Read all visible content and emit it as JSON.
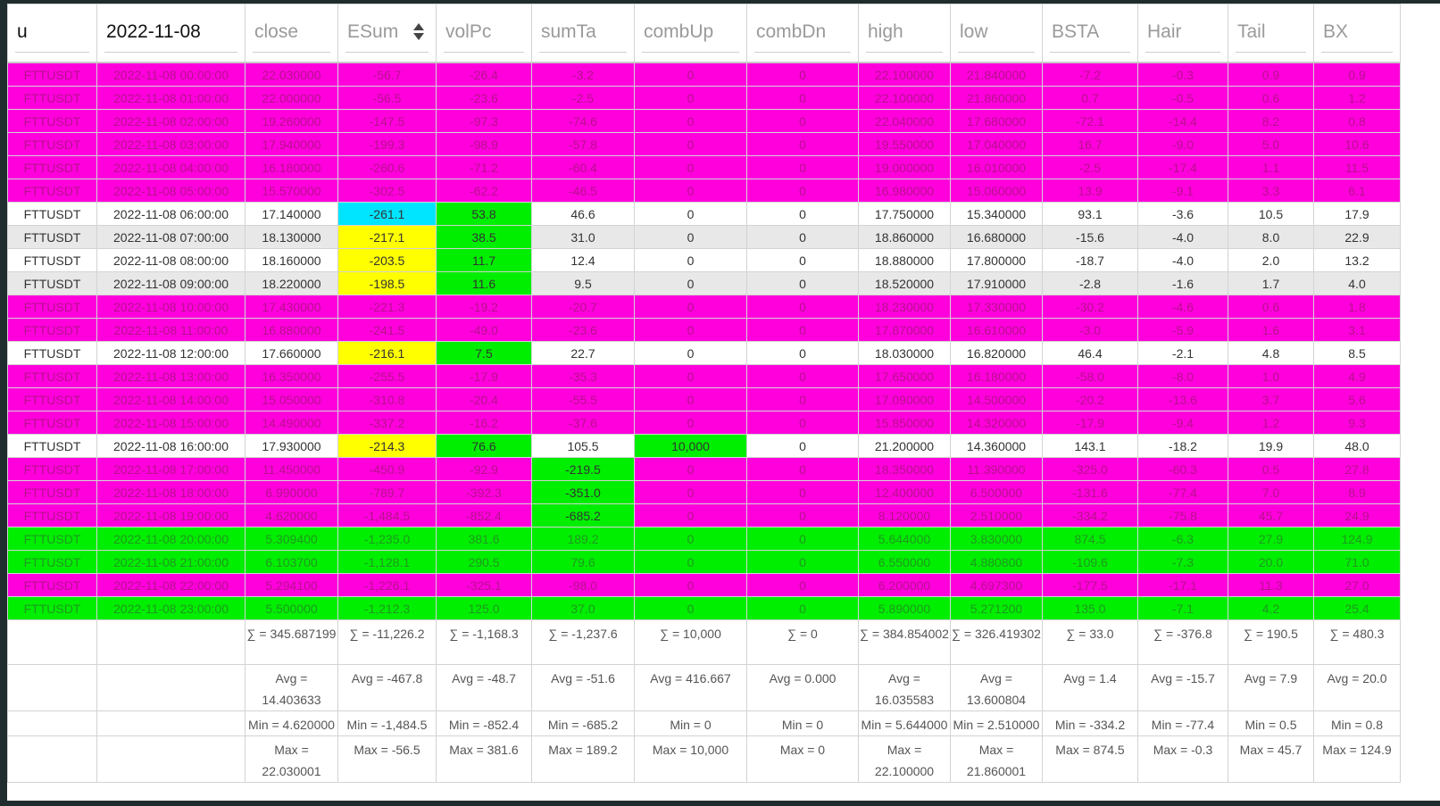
{
  "headers": [
    "u",
    "2022-11-08",
    "close",
    "ESum",
    "volPc",
    "sumTa",
    "combUp",
    "combDn",
    "high",
    "low",
    "BSTA",
    "Hair",
    "Tail",
    "BX"
  ],
  "rows": [
    {
      "style": "magenta",
      "cells": [
        "FTTUSDT",
        "2022-11-08 00:00:00",
        "22.030000",
        "-56.7",
        "-26.4",
        "-3.2",
        "0",
        "0",
        "22.100000",
        "21.840000",
        "-7.2",
        "-0.3",
        "0.9",
        "0.9"
      ]
    },
    {
      "style": "magenta",
      "cells": [
        "FTTUSDT",
        "2022-11-08 01:00:00",
        "22.000000",
        "-56.5",
        "-23.6",
        "-2.5",
        "0",
        "0",
        "22.100000",
        "21.860000",
        "0.7",
        "-0.5",
        "0.6",
        "1.2"
      ]
    },
    {
      "style": "magenta",
      "cells": [
        "FTTUSDT",
        "2022-11-08 02:00:00",
        "19.260000",
        "-147.5",
        "-97.3",
        "-74.6",
        "0",
        "0",
        "22.040000",
        "17.680000",
        "-72.1",
        "-14.4",
        "8.2",
        "0.8"
      ]
    },
    {
      "style": "magenta",
      "cells": [
        "FTTUSDT",
        "2022-11-08 03:00:00",
        "17.940000",
        "-199.3",
        "-98.9",
        "-57.8",
        "0",
        "0",
        "19.550000",
        "17.040000",
        "16.7",
        "-9.0",
        "5.0",
        "10.6"
      ]
    },
    {
      "style": "magenta",
      "cells": [
        "FTTUSDT",
        "2022-11-08 04:00:00",
        "16.180000",
        "-260.6",
        "-71.2",
        "-60.4",
        "0",
        "0",
        "19.000000",
        "16.010000",
        "-2.5",
        "-17.4",
        "1.1",
        "11.5"
      ]
    },
    {
      "style": "magenta",
      "cells": [
        "FTTUSDT",
        "2022-11-08 05:00:00",
        "15.570000",
        "-302.5",
        "-62.2",
        "-46.5",
        "0",
        "0",
        "16.980000",
        "15.060000",
        "13.9",
        "-9.1",
        "3.3",
        "6.1"
      ]
    },
    {
      "style": "white",
      "hl": {
        "3": "cyan",
        "4": "lime"
      },
      "cells": [
        "FTTUSDT",
        "2022-11-08 06:00:00",
        "17.140000",
        "-261.1",
        "53.8",
        "46.6",
        "0",
        "0",
        "17.750000",
        "15.340000",
        "93.1",
        "-3.6",
        "10.5",
        "17.9"
      ]
    },
    {
      "style": "gray",
      "hl": {
        "3": "yellow",
        "4": "lime"
      },
      "cells": [
        "FTTUSDT",
        "2022-11-08 07:00:00",
        "18.130000",
        "-217.1",
        "38.5",
        "31.0",
        "0",
        "0",
        "18.860000",
        "16.680000",
        "-15.6",
        "-4.0",
        "8.0",
        "22.9"
      ]
    },
    {
      "style": "white",
      "hl": {
        "3": "yellow",
        "4": "lime"
      },
      "cells": [
        "FTTUSDT",
        "2022-11-08 08:00:00",
        "18.160000",
        "-203.5",
        "11.7",
        "12.4",
        "0",
        "0",
        "18.880000",
        "17.800000",
        "-18.7",
        "-4.0",
        "2.0",
        "13.2"
      ]
    },
    {
      "style": "gray",
      "hl": {
        "3": "yellow",
        "4": "lime"
      },
      "cells": [
        "FTTUSDT",
        "2022-11-08 09:00:00",
        "18.220000",
        "-198.5",
        "11.6",
        "9.5",
        "0",
        "0",
        "18.520000",
        "17.910000",
        "-2.8",
        "-1.6",
        "1.7",
        "4.0"
      ]
    },
    {
      "style": "magenta",
      "cells": [
        "FTTUSDT",
        "2022-11-08 10:00:00",
        "17.430000",
        "-221.3",
        "-19.2",
        "-20.7",
        "0",
        "0",
        "18.230000",
        "17.330000",
        "-30.2",
        "-4.6",
        "0.6",
        "1.8"
      ]
    },
    {
      "style": "magenta",
      "cells": [
        "FTTUSDT",
        "2022-11-08 11:00:00",
        "16.880000",
        "-241.5",
        "-49.0",
        "-23.6",
        "0",
        "0",
        "17.870000",
        "16.610000",
        "-3.0",
        "-5.9",
        "1.6",
        "3.1"
      ]
    },
    {
      "style": "white",
      "hl": {
        "3": "yellow",
        "4": "lime"
      },
      "cells": [
        "FTTUSDT",
        "2022-11-08 12:00:00",
        "17.660000",
        "-216.1",
        "7.5",
        "22.7",
        "0",
        "0",
        "18.030000",
        "16.820000",
        "46.4",
        "-2.1",
        "4.8",
        "8.5"
      ]
    },
    {
      "style": "magenta",
      "cells": [
        "FTTUSDT",
        "2022-11-08 13:00:00",
        "16.350000",
        "-255.5",
        "-17.9",
        "-35.3",
        "0",
        "0",
        "17.650000",
        "16.180000",
        "-58.0",
        "-8.0",
        "1.0",
        "4.9"
      ]
    },
    {
      "style": "magenta",
      "cells": [
        "FTTUSDT",
        "2022-11-08 14:00:00",
        "15.050000",
        "-310.8",
        "-20.4",
        "-55.5",
        "0",
        "0",
        "17.090000",
        "14.500000",
        "-20.2",
        "-13.6",
        "3.7",
        "5.6"
      ]
    },
    {
      "style": "magenta",
      "cells": [
        "FTTUSDT",
        "2022-11-08 15:00:00",
        "14.490000",
        "-337.2",
        "-16.2",
        "-37.6",
        "0",
        "0",
        "15.850000",
        "14.320000",
        "-17.9",
        "-9.4",
        "1.2",
        "9.3"
      ]
    },
    {
      "style": "white",
      "hl": {
        "3": "yellow",
        "4": "lime",
        "6": "lime"
      },
      "cells": [
        "FTTUSDT",
        "2022-11-08 16:00:00",
        "17.930000",
        "-214.3",
        "76.6",
        "105.5",
        "10,000",
        "0",
        "21.200000",
        "14.360000",
        "143.1",
        "-18.2",
        "19.9",
        "48.0"
      ]
    },
    {
      "style": "magenta",
      "hl": {
        "5": "lime"
      },
      "cells": [
        "FTTUSDT",
        "2022-11-08 17:00:00",
        "11.450000",
        "-450.9",
        "-92.9",
        "-219.5",
        "0",
        "0",
        "18.350000",
        "11.390000",
        "-325.0",
        "-60.3",
        "0.5",
        "27.8"
      ]
    },
    {
      "style": "magenta",
      "hl": {
        "5": "lime"
      },
      "cells": [
        "FTTUSDT",
        "2022-11-08 18:00:00",
        "6.990000",
        "-789.7",
        "-392.3",
        "-351.0",
        "0",
        "0",
        "12.400000",
        "6.500000",
        "-131.6",
        "-77.4",
        "7.0",
        "8.9"
      ]
    },
    {
      "style": "magenta",
      "hl": {
        "5": "lime"
      },
      "cells": [
        "FTTUSDT",
        "2022-11-08 19:00:00",
        "4.620000",
        "-1,484.5",
        "-852.4",
        "-685.2",
        "0",
        "0",
        "8.120000",
        "2.510000",
        "-334.2",
        "-75.8",
        "45.7",
        "24.9"
      ]
    },
    {
      "style": "green",
      "cells": [
        "FTTUSDT",
        "2022-11-08 20:00:00",
        "5.309400",
        "-1,235.0",
        "381.6",
        "189.2",
        "0",
        "0",
        "5.644000",
        "3.830000",
        "874.5",
        "-6.3",
        "27.9",
        "124.9"
      ]
    },
    {
      "style": "green",
      "cells": [
        "FTTUSDT",
        "2022-11-08 21:00:00",
        "6.103700",
        "-1,128.1",
        "290.5",
        "79.6",
        "0",
        "0",
        "6.550000",
        "4.880800",
        "-109.6",
        "-7.3",
        "20.0",
        "71.0"
      ]
    },
    {
      "style": "magenta",
      "cells": [
        "FTTUSDT",
        "2022-11-08 22:00:00",
        "5.294100",
        "-1,226.1",
        "-325.1",
        "-98.0",
        "0",
        "0",
        "6.200000",
        "4.697300",
        "-177.5",
        "-17.1",
        "11.3",
        "27.0"
      ]
    },
    {
      "style": "green",
      "cells": [
        "FTTUSDT",
        "2022-11-08 23:00:00",
        "5.500000",
        "-1,212.3",
        "125.0",
        "37.0",
        "0",
        "0",
        "5.890000",
        "5.271200",
        "135.0",
        "-7.1",
        "4.2",
        "25.4"
      ]
    }
  ],
  "footer": [
    {
      "key": "f1",
      "cells": [
        "",
        "",
        "∑ = 345.687199",
        "∑ = -11,226.2",
        "∑ = -1,168.3",
        "∑ = -1,237.6",
        "∑ = 10,000",
        "∑ = 0",
        "∑ = 384.854002",
        "∑ = 326.419302",
        "∑ = 33.0",
        "∑ = -376.8",
        "∑ = 190.5",
        "∑ = 480.3"
      ]
    },
    {
      "key": "f2",
      "cells": [
        "",
        "",
        "Avg = 14.403633",
        "Avg = -467.8",
        "Avg = -48.7",
        "Avg = -51.6",
        "Avg = 416.667",
        "Avg = 0.000",
        "Avg = 16.035583",
        "Avg = 13.600804",
        "Avg = 1.4",
        "Avg = -15.7",
        "Avg = 7.9",
        "Avg = 20.0"
      ]
    },
    {
      "key": "f3",
      "cells": [
        "",
        "",
        "Min = 4.620000",
        "Min = -1,484.5",
        "Min = -852.4",
        "Min = -685.2",
        "Min = 0",
        "Min = 0",
        "Min = 5.644000",
        "Min = 2.510000",
        "Min = -334.2",
        "Min = -77.4",
        "Min = 0.5",
        "Min = 0.8"
      ]
    },
    {
      "key": "f4",
      "cells": [
        "",
        "",
        "Max = 22.030001",
        "Max = -56.5",
        "Max = 381.6",
        "Max = 189.2",
        "Max = 10,000",
        "Max = 0",
        "Max = 22.100000",
        "Max = 21.860001",
        "Max = 874.5",
        "Max = -0.3",
        "Max = 45.7",
        "Max = 124.9"
      ]
    }
  ],
  "sort_column": "ESum",
  "colors": {
    "magenta": "#ff00dd",
    "green": "#00ee00",
    "cyan": "#00e5ff",
    "yellow": "#ffff00",
    "gray": "#e8e8e8"
  }
}
